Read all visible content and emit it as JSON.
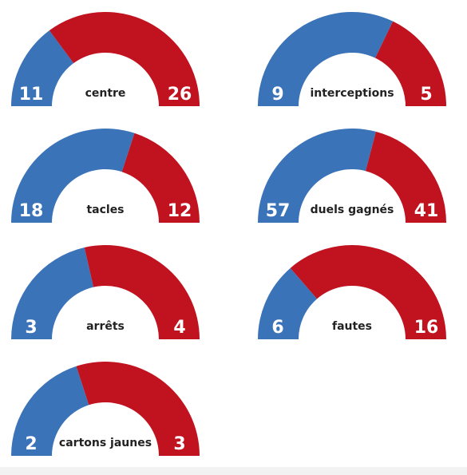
{
  "chart_data": [
    {
      "type": "semi-donut",
      "title": "centre",
      "values": [
        11,
        26
      ],
      "colors": [
        "#3b73b9",
        "#c0121f"
      ]
    },
    {
      "type": "semi-donut",
      "title": "interceptions",
      "values": [
        9,
        5
      ],
      "colors": [
        "#3b73b9",
        "#c0121f"
      ]
    },
    {
      "type": "semi-donut",
      "title": "tacles",
      "values": [
        18,
        12
      ],
      "colors": [
        "#3b73b9",
        "#c0121f"
      ]
    },
    {
      "type": "semi-donut",
      "title": "duels gagnés",
      "values": [
        57,
        41
      ],
      "colors": [
        "#3b73b9",
        "#c0121f"
      ]
    },
    {
      "type": "semi-donut",
      "title": "arrêts",
      "values": [
        3,
        4
      ],
      "colors": [
        "#3b73b9",
        "#c0121f"
      ]
    },
    {
      "type": "semi-donut",
      "title": "fautes",
      "values": [
        6,
        16
      ],
      "colors": [
        "#3b73b9",
        "#c0121f"
      ]
    },
    {
      "type": "semi-donut",
      "title": "cartons jaunes",
      "values": [
        2,
        3
      ],
      "colors": [
        "#3b73b9",
        "#c0121f"
      ]
    }
  ]
}
